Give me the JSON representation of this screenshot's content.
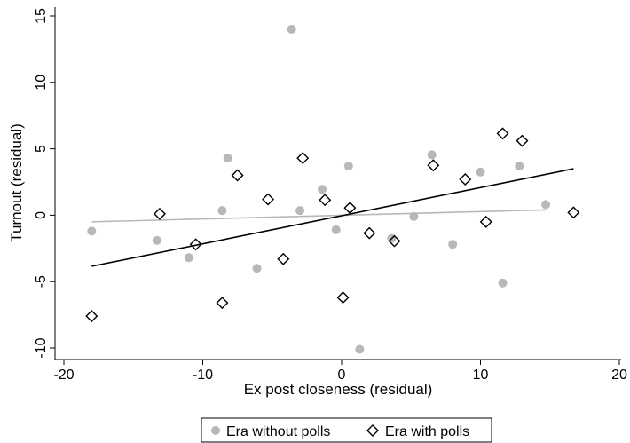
{
  "chart_data": {
    "type": "scatter",
    "title": "",
    "xlabel": "Ex post closeness (residual)",
    "ylabel": "Turnout (residual)",
    "xlim": [
      -21.5,
      21.5
    ],
    "ylim": [
      -11,
      15.8
    ],
    "xticks": [
      -20,
      -10,
      0,
      10,
      20
    ],
    "yticks": [
      -10,
      -5,
      0,
      5,
      10,
      15
    ],
    "grid": false,
    "legend_position": "bottom-center",
    "series": [
      {
        "name": "Era without polls",
        "marker": "filled-circle",
        "color": "#b8b8b8",
        "points": [
          [
            -18.0,
            -1.2
          ],
          [
            -13.3,
            -1.9
          ],
          [
            -11.0,
            -3.2
          ],
          [
            -8.6,
            0.35
          ],
          [
            -8.2,
            4.3
          ],
          [
            -6.1,
            -4.0
          ],
          [
            -3.6,
            14.0
          ],
          [
            -3.0,
            0.35
          ],
          [
            -1.4,
            1.95
          ],
          [
            -0.4,
            -1.1
          ],
          [
            0.5,
            3.7
          ],
          [
            1.3,
            -10.1
          ],
          [
            3.6,
            -1.75
          ],
          [
            5.2,
            -0.1
          ],
          [
            6.5,
            4.55
          ],
          [
            8.0,
            -2.2
          ],
          [
            10.0,
            3.25
          ],
          [
            11.6,
            -5.1
          ],
          [
            12.8,
            3.7
          ],
          [
            14.7,
            0.8
          ]
        ],
        "fit": {
          "x": [
            -18.0,
            14.7
          ],
          "y": [
            -0.5,
            0.4
          ],
          "color": "#b8b8b8"
        }
      },
      {
        "name": "Era with polls",
        "marker": "hollow-diamond",
        "color": "#000000",
        "points": [
          [
            -18.0,
            -7.6
          ],
          [
            -13.1,
            0.1
          ],
          [
            -10.5,
            -2.2
          ],
          [
            -8.6,
            -6.6
          ],
          [
            -7.5,
            3.0
          ],
          [
            -5.3,
            1.2
          ],
          [
            -4.2,
            -3.3
          ],
          [
            -2.8,
            4.3
          ],
          [
            -1.2,
            1.15
          ],
          [
            0.1,
            -6.2
          ],
          [
            0.6,
            0.55
          ],
          [
            2.0,
            -1.35
          ],
          [
            3.8,
            -1.95
          ],
          [
            6.6,
            3.75
          ],
          [
            8.9,
            2.7
          ],
          [
            10.4,
            -0.5
          ],
          [
            11.6,
            6.15
          ],
          [
            13.0,
            5.6
          ],
          [
            16.7,
            0.2
          ]
        ],
        "fit": {
          "x": [
            -18.0,
            16.7
          ],
          "y": [
            -3.85,
            3.5
          ],
          "color": "#000000"
        }
      }
    ]
  }
}
